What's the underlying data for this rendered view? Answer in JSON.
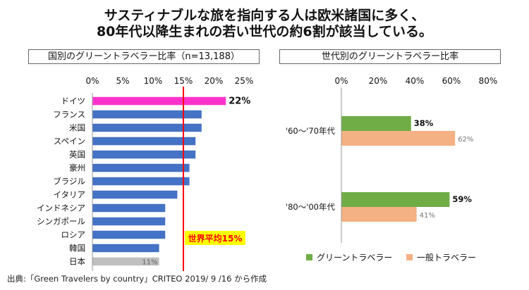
{
  "headline": {
    "line1": "サスティナブルな旅を指向する人は欧米諸国に多く、",
    "line2": "80年代以降生まれの若い世代の約6割が該当している。"
  },
  "source": "出典:「Green Travelers by country」CRITEO 2019/ 9 /16 から作成",
  "colors": {
    "highlight": "#ff33cc",
    "blue": "#4472c4",
    "gray": "#bfbfbf",
    "avg_line": "#ff0000",
    "green": "#70ad47",
    "orange": "#f4b183",
    "avg_label_bg": "#ffff00",
    "avg_label_text": "#ff0000"
  },
  "chart_data": [
    {
      "type": "bar",
      "orientation": "horizontal",
      "title": "国別のグリーントラベラー比率（n=13,188）",
      "categories": [
        "ドイツ",
        "フランス",
        "米国",
        "スペイン",
        "英国",
        "豪州",
        "ブラジル",
        "イタリア",
        "インドネシア",
        "シンガポール",
        "ロシア",
        "韓国",
        "日本"
      ],
      "values": [
        22,
        18,
        18,
        17,
        17,
        16,
        16,
        14,
        12,
        12,
        12,
        11,
        11
      ],
      "data_labels": [
        "22%",
        "",
        "",
        "",
        "",
        "",
        "",
        "",
        "",
        "",
        "",
        "",
        "11%"
      ],
      "bar_colors": [
        "#ff33cc",
        "#4472c4",
        "#4472c4",
        "#4472c4",
        "#4472c4",
        "#4472c4",
        "#4472c4",
        "#4472c4",
        "#4472c4",
        "#4472c4",
        "#4472c4",
        "#4472c4",
        "#bfbfbf"
      ],
      "xlim": [
        0,
        25
      ],
      "x_ticks": [
        "0%",
        "5%",
        "10%",
        "15%",
        "20%",
        "25%"
      ],
      "x_tick_values": [
        0,
        5,
        10,
        15,
        20,
        25
      ],
      "reference_line": {
        "value": 15,
        "label": "世界平均15%"
      },
      "grid": false
    },
    {
      "type": "bar",
      "orientation": "horizontal",
      "title": "世代別のグリーントラベラー比率",
      "categories": [
        "'60～'70年代",
        "'80～'00年代"
      ],
      "series": [
        {
          "name": "グリーントラベラー",
          "values": [
            38,
            59
          ],
          "labels": [
            "38%",
            "59%"
          ],
          "color": "#70ad47"
        },
        {
          "name": "一般トラベラー",
          "values": [
            62,
            41
          ],
          "labels": [
            "62%",
            "41%"
          ],
          "color": "#f4b183"
        }
      ],
      "xlim": [
        0,
        80
      ],
      "x_ticks": [
        "0%",
        "20%",
        "40%",
        "60%",
        "80%"
      ],
      "x_tick_values": [
        0,
        20,
        40,
        60,
        80
      ],
      "legend": "bottom",
      "grid": false
    }
  ]
}
